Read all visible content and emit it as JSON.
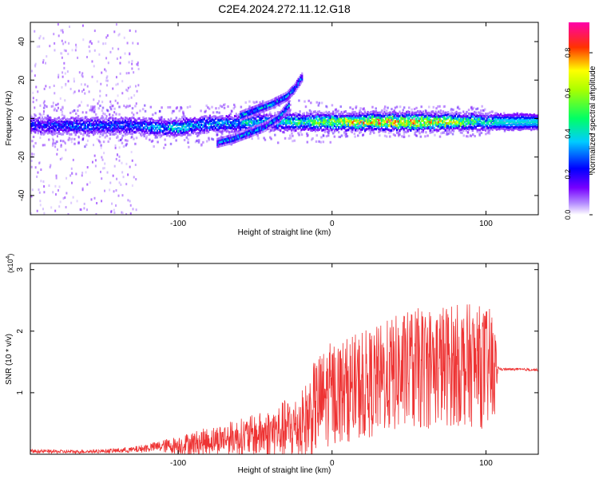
{
  "figure_title": "C2E4.2024.272.11.12.G18",
  "chart_data": [
    {
      "type": "heatmap",
      "xlabel": "Height of straight line (km)",
      "ylabel": "Frequency (Hz)",
      "xlim": [
        -196,
        134
      ],
      "ylim": [
        -50,
        50
      ],
      "xticks": [
        -100,
        0,
        100
      ],
      "yticks": [
        -40,
        -20,
        0,
        20,
        40
      ],
      "colorbar": {
        "label": "Normalized spectral amplitude",
        "range": [
          0.0,
          0.95
        ],
        "ticks": [
          "0.0",
          "0.2",
          "0.4",
          "0.6",
          "0.8"
        ],
        "colormap": [
          "#ffffff",
          "#7700ff",
          "#0000ff",
          "#00ffff",
          "#00ff00",
          "#ffff00",
          "#ff0000",
          "#ff00aa"
        ]
      },
      "main_band": {
        "x": [
          -196,
          -170,
          -150,
          -130,
          -110,
          -100,
          -90,
          -80,
          -70,
          -60,
          -50,
          -40,
          -30,
          -20,
          0,
          20,
          40,
          60,
          80,
          100,
          110,
          134
        ],
        "freq": [
          -3,
          -3,
          -3,
          -3,
          -4,
          -4,
          -3,
          -2,
          -2,
          -2,
          -1,
          -1,
          -1,
          -1,
          -1,
          -1,
          -1,
          -1,
          -1,
          -1,
          -1,
          -1
        ],
        "amplitude": [
          0.25,
          0.3,
          0.3,
          0.3,
          0.35,
          0.45,
          0.35,
          0.35,
          0.35,
          0.4,
          0.4,
          0.4,
          0.45,
          0.5,
          0.6,
          0.75,
          0.8,
          0.75,
          0.65,
          0.45,
          0.4,
          0.4
        ]
      },
      "rising_branch": {
        "x": [
          -60,
          -50,
          -40,
          -30,
          -25,
          -20
        ],
        "freq": [
          2,
          5,
          8,
          12,
          16,
          22
        ]
      },
      "falling_branch": {
        "x": [
          -75,
          -65,
          -55,
          -45,
          -35,
          -28
        ],
        "freq": [
          -12,
          -10,
          -7,
          -4,
          1,
          8
        ]
      }
    },
    {
      "type": "line",
      "xlabel": "Height of straight line (km)",
      "ylabel": "SNR (10 * v/v)",
      "scale_label": "(x10",
      "scale_exponent": "4",
      "scale_close": ")",
      "xlim": [
        -196,
        134
      ],
      "ylim": [
        0,
        3.1
      ],
      "xticks": [
        -100,
        0,
        100
      ],
      "yticks": [
        1,
        2,
        3
      ],
      "color": "#ee3333",
      "envelope": {
        "x": [
          -196,
          -170,
          -150,
          -130,
          -115,
          -100,
          -90,
          -80,
          -70,
          -60,
          -50,
          -40,
          -30,
          -20,
          -15,
          -10,
          0,
          10,
          20,
          30,
          40,
          50,
          60,
          70,
          80,
          90,
          100,
          105,
          108,
          110,
          120,
          134
        ],
        "mean": [
          0.05,
          0.04,
          0.05,
          0.07,
          0.12,
          0.15,
          0.18,
          0.22,
          0.26,
          0.28,
          0.3,
          0.35,
          0.4,
          0.45,
          0.6,
          0.8,
          1.0,
          1.05,
          1.1,
          1.2,
          1.3,
          1.35,
          1.4,
          1.45,
          1.45,
          1.45,
          1.4,
          1.35,
          1.4,
          1.38,
          1.38,
          1.37
        ],
        "spread": [
          0.03,
          0.03,
          0.03,
          0.05,
          0.08,
          0.15,
          0.2,
          0.22,
          0.25,
          0.3,
          0.35,
          0.4,
          0.5,
          0.55,
          0.7,
          0.8,
          0.85,
          0.85,
          0.9,
          0.9,
          0.95,
          1.0,
          1.0,
          1.0,
          1.0,
          1.0,
          1.0,
          1.0,
          0.02,
          0.02,
          0.02,
          0.02
        ]
      }
    }
  ]
}
